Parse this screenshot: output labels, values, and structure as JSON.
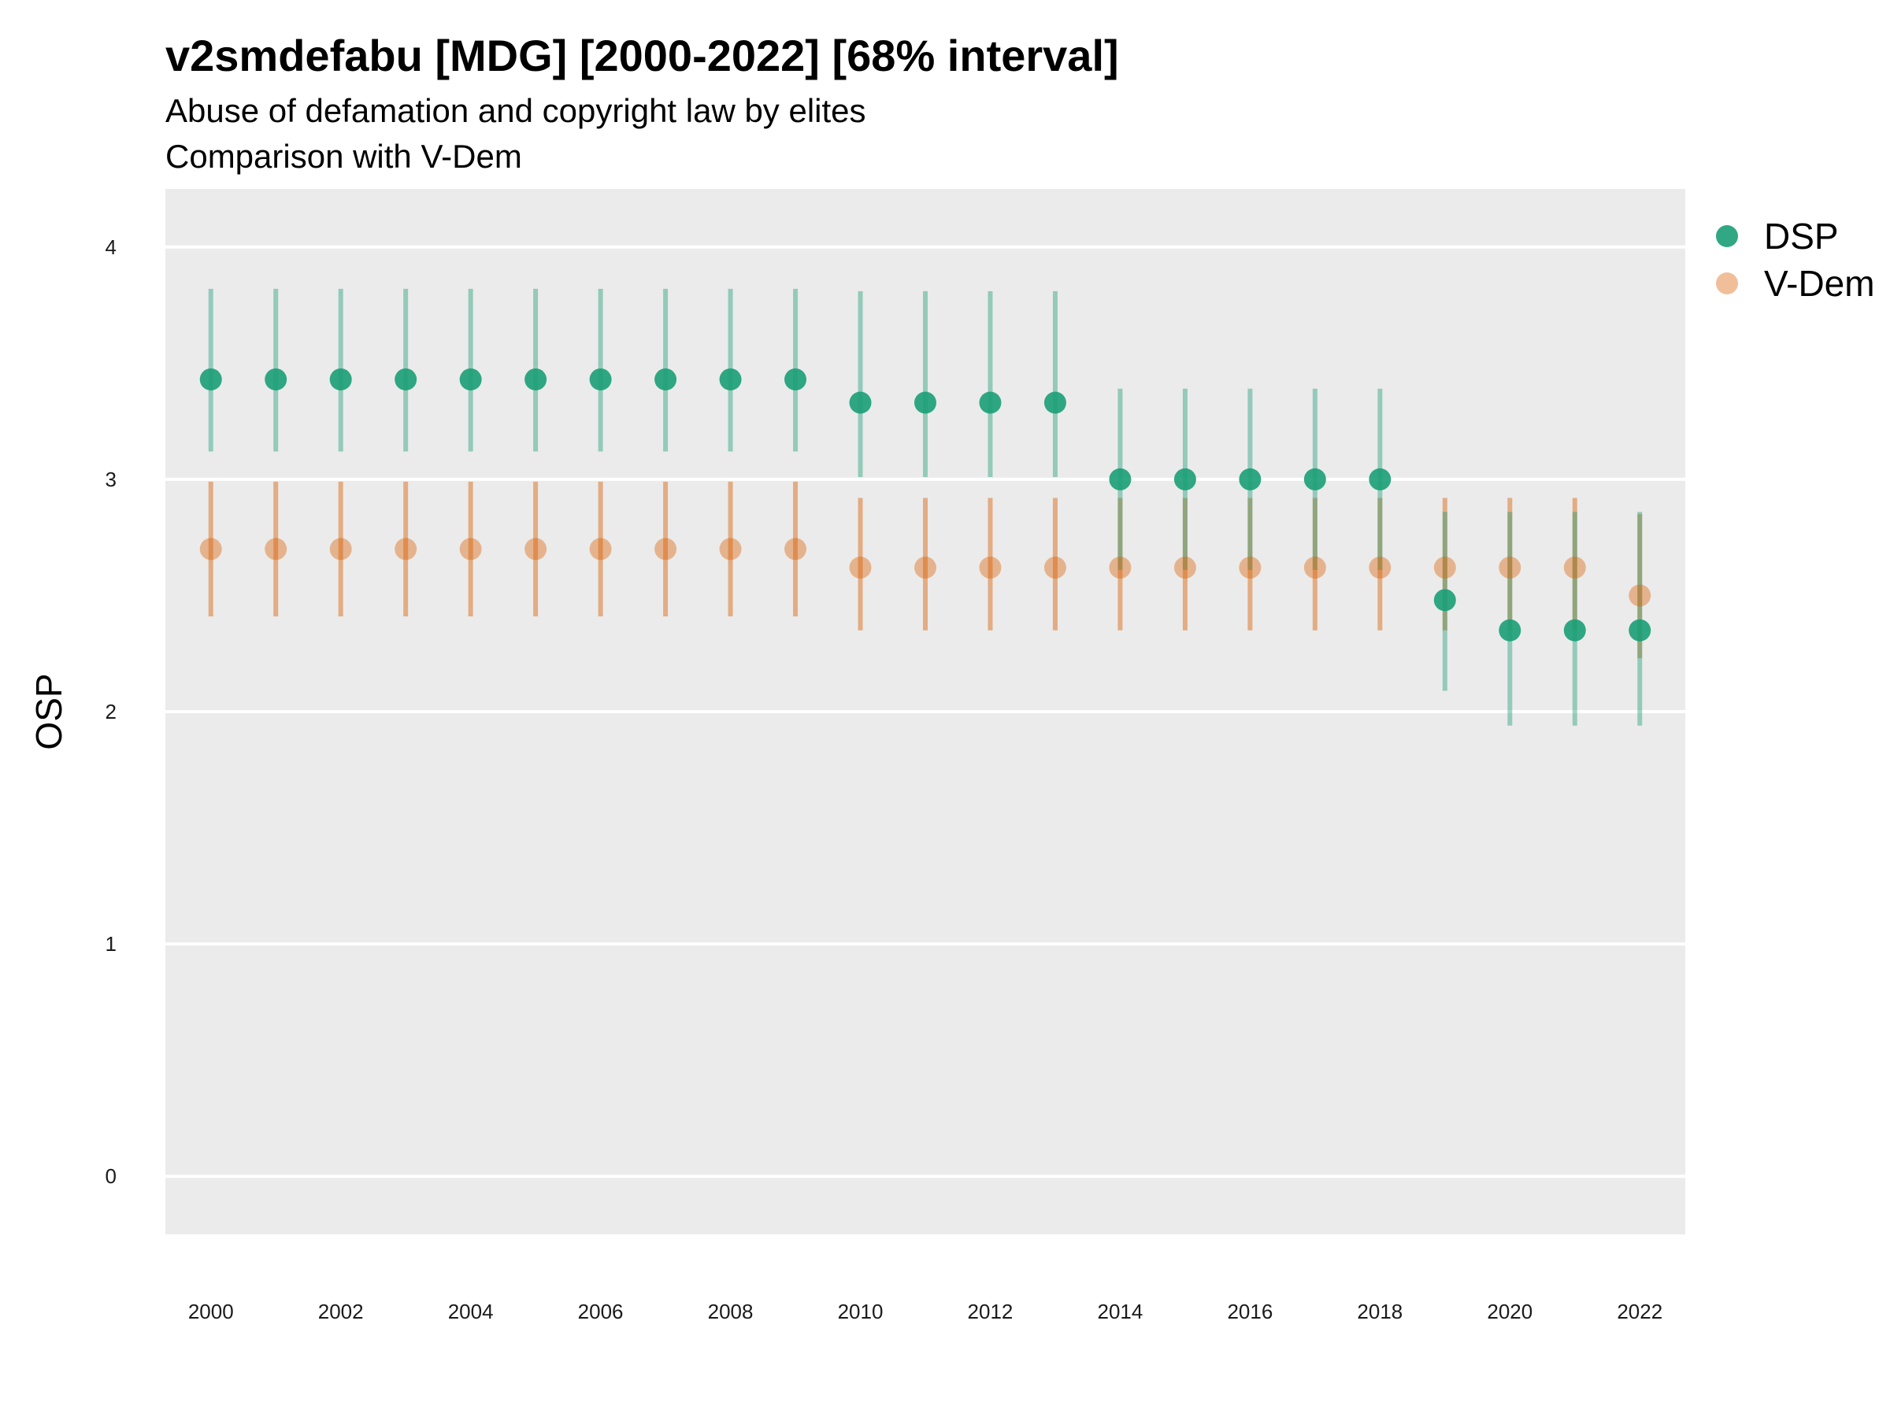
{
  "chart_data": {
    "type": "scatter",
    "title": "v2smdefabu [MDG] [2000-2022] [68% interval]",
    "subtitle_line1": "Abuse of defamation and copyright law by elites",
    "subtitle_line2": "Comparison with V-Dem",
    "ylabel": "OSP",
    "xlabel": "",
    "ylim": [
      -0.25,
      4.25
    ],
    "xlim": [
      1999.3,
      2022.7
    ],
    "y_ticks": [
      0,
      1,
      2,
      3,
      4
    ],
    "x_ticks": [
      2000,
      2002,
      2004,
      2006,
      2008,
      2010,
      2012,
      2014,
      2016,
      2018,
      2020,
      2022
    ],
    "grid": true,
    "legend_position": "right",
    "x": [
      2000,
      2001,
      2002,
      2003,
      2004,
      2005,
      2006,
      2007,
      2008,
      2009,
      2010,
      2011,
      2012,
      2013,
      2014,
      2015,
      2016,
      2017,
      2018,
      2019,
      2020,
      2021,
      2022
    ],
    "series": [
      {
        "name": "DSP",
        "color": "#1b9e77",
        "values": [
          3.43,
          3.43,
          3.43,
          3.43,
          3.43,
          3.43,
          3.43,
          3.43,
          3.43,
          3.43,
          3.33,
          3.33,
          3.33,
          3.33,
          3.0,
          3.0,
          3.0,
          3.0,
          3.0,
          2.48,
          2.35,
          2.35,
          2.35
        ],
        "lower": [
          3.12,
          3.12,
          3.12,
          3.12,
          3.12,
          3.12,
          3.12,
          3.12,
          3.12,
          3.12,
          3.01,
          3.01,
          3.01,
          3.01,
          2.61,
          2.61,
          2.61,
          2.61,
          2.61,
          2.09,
          1.94,
          1.94,
          1.94
        ],
        "upper": [
          3.82,
          3.82,
          3.82,
          3.82,
          3.82,
          3.82,
          3.82,
          3.82,
          3.82,
          3.82,
          3.81,
          3.81,
          3.81,
          3.81,
          3.39,
          3.39,
          3.39,
          3.39,
          3.39,
          2.86,
          2.86,
          2.86,
          2.86
        ]
      },
      {
        "name": "V-Dem",
        "color": "#d95f02",
        "values": [
          2.7,
          2.7,
          2.7,
          2.7,
          2.7,
          2.7,
          2.7,
          2.7,
          2.7,
          2.7,
          2.62,
          2.62,
          2.62,
          2.62,
          2.62,
          2.62,
          2.62,
          2.62,
          2.62,
          2.62,
          2.62,
          2.62,
          2.5
        ],
        "lower": [
          2.41,
          2.41,
          2.41,
          2.41,
          2.41,
          2.41,
          2.41,
          2.41,
          2.41,
          2.41,
          2.35,
          2.35,
          2.35,
          2.35,
          2.35,
          2.35,
          2.35,
          2.35,
          2.35,
          2.35,
          2.35,
          2.35,
          2.23
        ],
        "upper": [
          2.99,
          2.99,
          2.99,
          2.99,
          2.99,
          2.99,
          2.99,
          2.99,
          2.99,
          2.99,
          2.92,
          2.92,
          2.92,
          2.92,
          2.92,
          2.92,
          2.92,
          2.92,
          2.92,
          2.92,
          2.92,
          2.92,
          2.85
        ]
      }
    ]
  }
}
